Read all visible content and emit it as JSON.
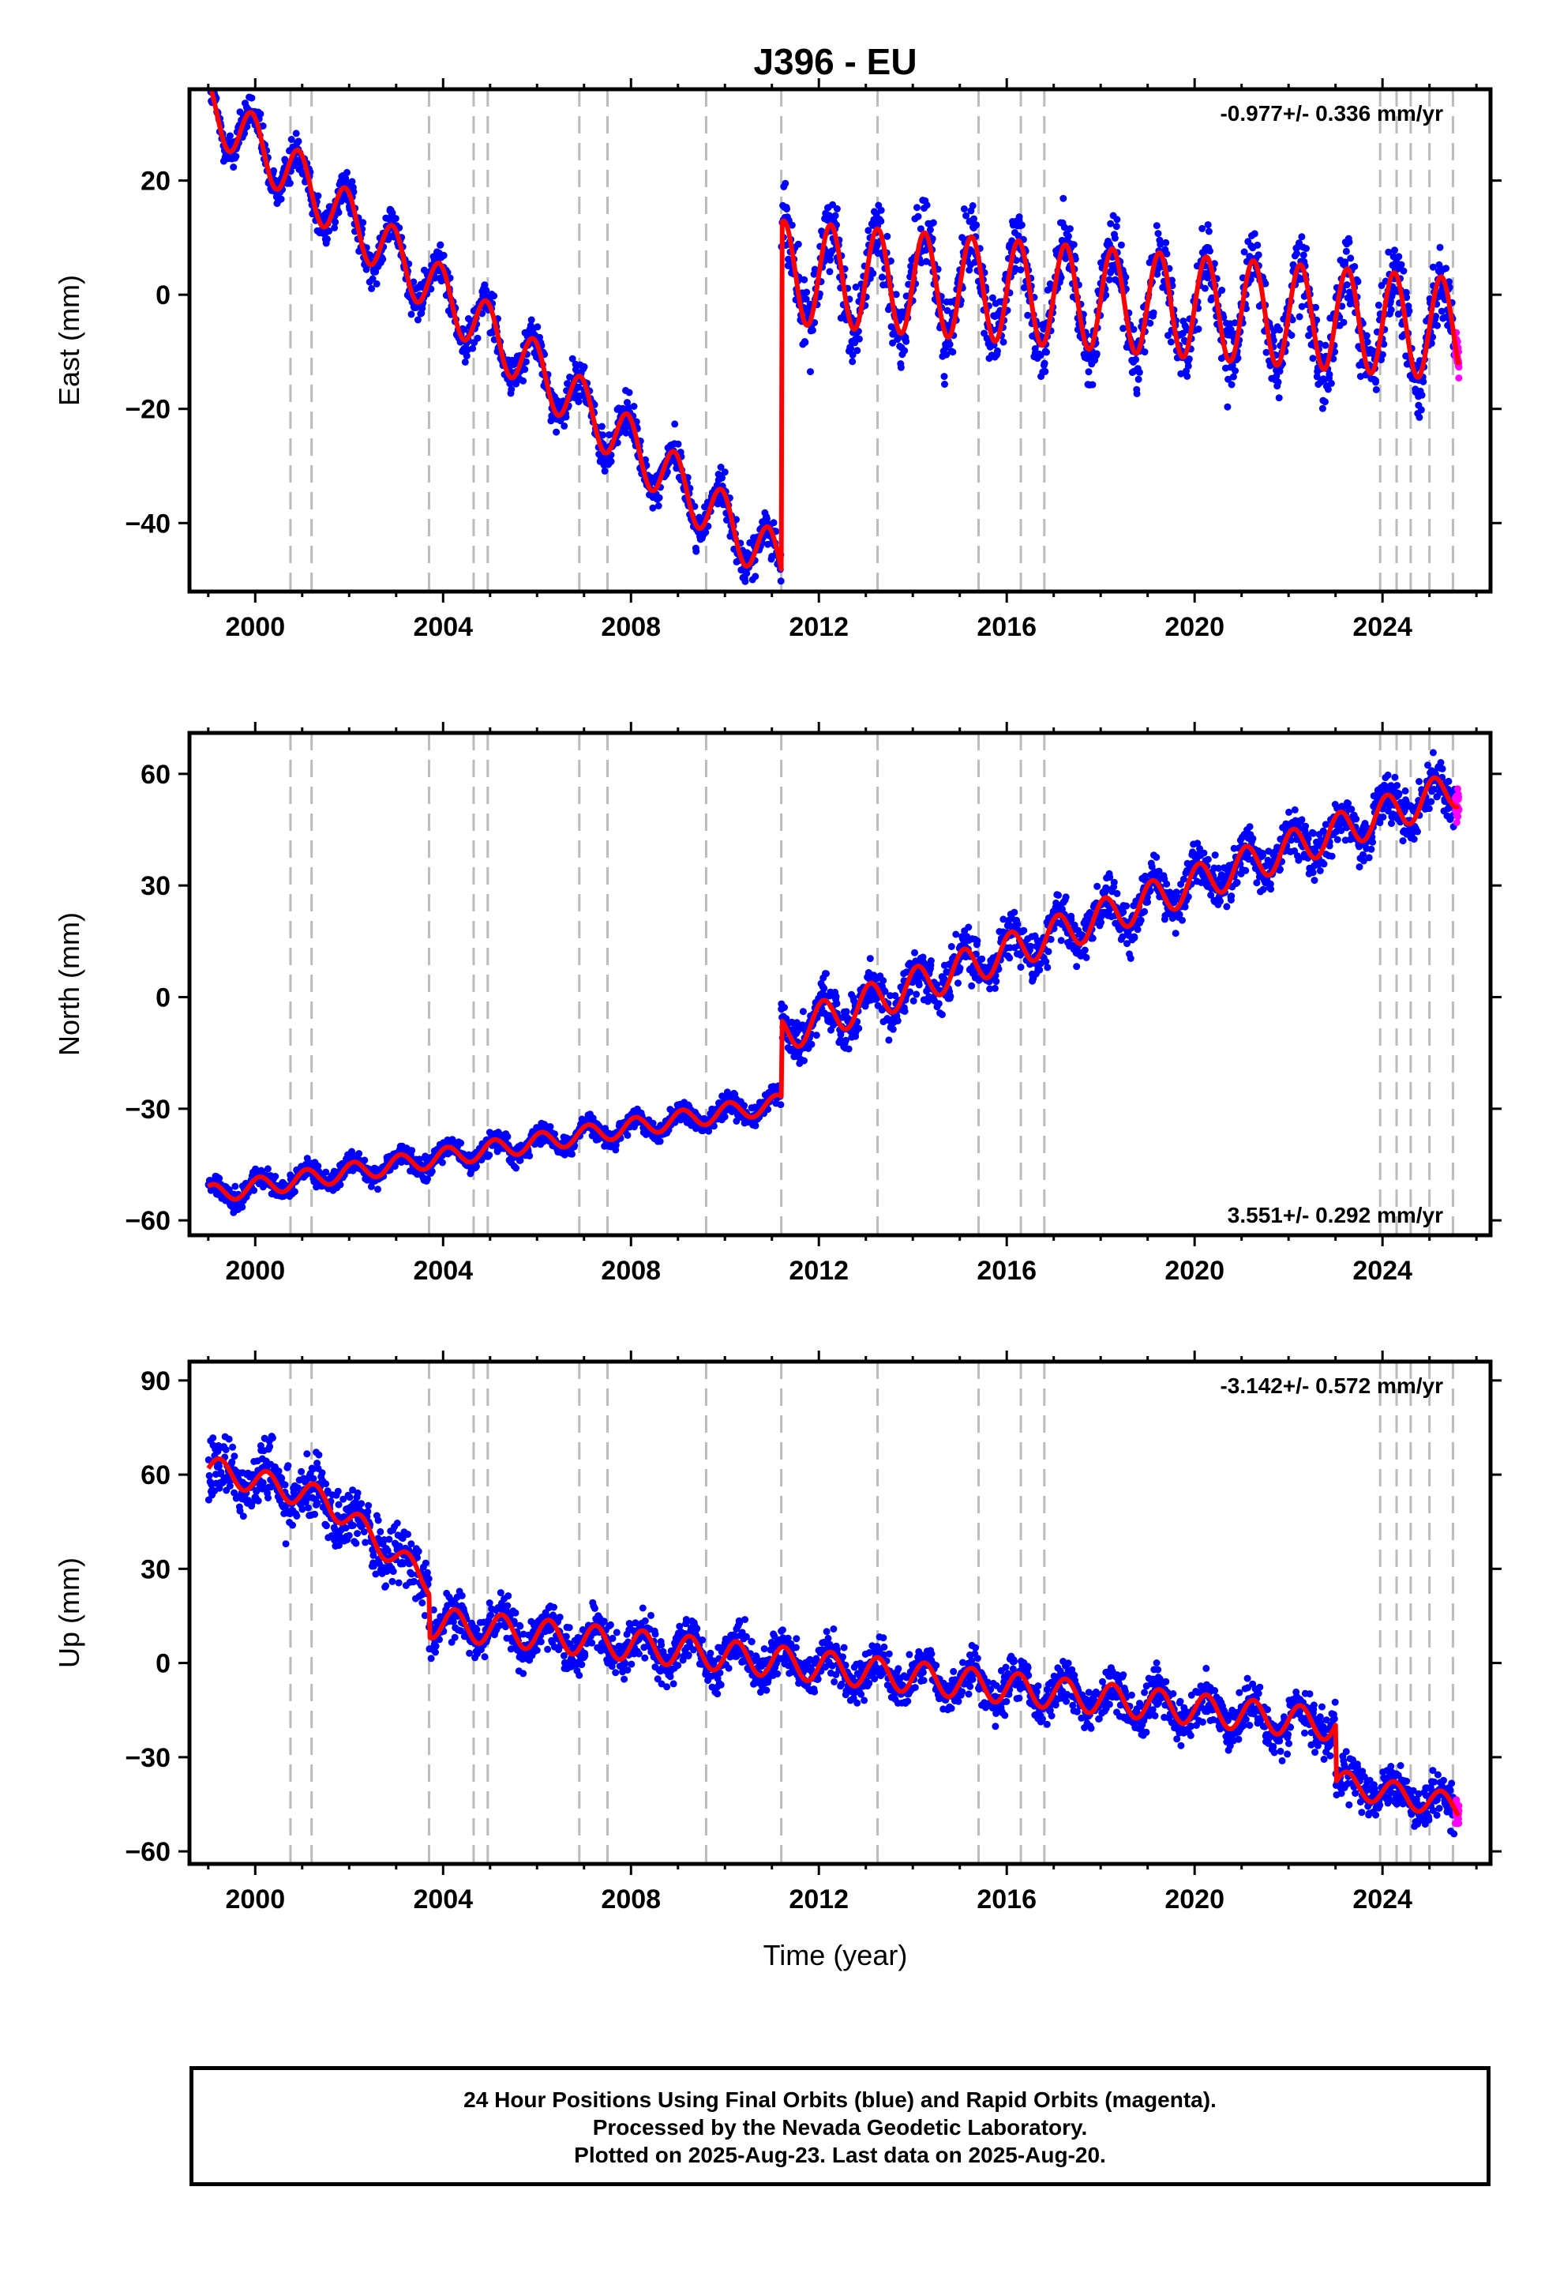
{
  "title": "J396 - EU",
  "xlabel": "Time (year)",
  "footer": {
    "line1": "24 Hour Positions Using Final Orbits (blue) and Rapid Orbits (magenta).",
    "line2": "Processed by the Nevada Geodetic Laboratory.",
    "line3": "Plotted on 2025-Aug-23. Last data on 2025-Aug-20."
  },
  "colors": {
    "final": "#0000ff",
    "rapid": "#ff00ff",
    "model": "#ff0000",
    "events": "#bbbbbb"
  },
  "chart_data": [
    {
      "type": "scatter",
      "component": "east",
      "ylabel": "East (mm)",
      "rate_text": "-0.977+/- 0.336 mm/yr",
      "rate_position": "top-right",
      "xlim": [
        1998.6,
        2026.3
      ],
      "ylim": [
        -52,
        36
      ],
      "xticks": [
        2000,
        2004,
        2008,
        2012,
        2016,
        2020,
        2024
      ],
      "yticks": [
        -40,
        -20,
        0,
        20
      ],
      "events": [
        2000.75,
        2001.2,
        2003.7,
        2004.65,
        2004.95,
        2006.9,
        2007.5,
        2009.6,
        2011.2,
        2013.25,
        2015.4,
        2016.3,
        2016.8,
        2023.95,
        2024.3,
        2024.6,
        2025.0,
        2025.5
      ],
      "segments": [
        {
          "from": 1999.0,
          "to": 2011.2,
          "offset": 33,
          "rate": -6.6,
          "amp": 5,
          "phase": 2.0,
          "noise": 2.5
        },
        {
          "from": 2011.2,
          "to": 2025.63,
          "offset": 4,
          "rate": -0.7,
          "amp": 9,
          "phase": 0.0,
          "noise": 4.5
        }
      ],
      "final_series": {
        "name": "Final Orbits",
        "x_range": [
          1999.0,
          2025.55
        ]
      },
      "rapid_series": {
        "name": "Rapid Orbits",
        "x_range": [
          2025.55,
          2025.63
        ]
      },
      "model_fit": {
        "name": "Model fit"
      },
      "approx_points": [
        [
          1999.0,
          30
        ],
        [
          2003.0,
          5
        ],
        [
          2007.0,
          -22
        ],
        [
          2011.0,
          -45
        ],
        [
          2011.3,
          0
        ],
        [
          2014.0,
          5
        ],
        [
          2018.0,
          2
        ],
        [
          2022.0,
          -2
        ],
        [
          2025.5,
          -6
        ]
      ]
    },
    {
      "type": "scatter",
      "component": "north",
      "ylabel": "North (mm)",
      "rate_text": "3.551+/- 0.292 mm/yr",
      "rate_position": "bottom-right",
      "xlim": [
        1998.6,
        2026.3
      ],
      "ylim": [
        -64,
        71
      ],
      "xticks": [
        2000,
        2004,
        2008,
        2012,
        2016,
        2020,
        2024
      ],
      "yticks": [
        -60,
        -30,
        0,
        30,
        60
      ],
      "events": [
        2000.75,
        2001.2,
        2003.7,
        2004.65,
        2004.95,
        2006.9,
        2007.5,
        2009.6,
        2011.2,
        2013.25,
        2015.4,
        2016.3,
        2016.8,
        2023.95,
        2024.3,
        2024.6,
        2025.0,
        2025.5
      ],
      "segments": [
        {
          "from": 1999.0,
          "to": 2011.2,
          "offset": -53,
          "rate": 2.0,
          "amp": 2.5,
          "phase": 1.0,
          "noise": 2.0
        },
        {
          "from": 2011.2,
          "to": 2025.63,
          "offset": -10,
          "rate": 4.6,
          "amp": 5,
          "phase": 1.0,
          "noise": 4.5
        }
      ],
      "final_series": {
        "name": "Final Orbits",
        "x_range": [
          1999.0,
          2025.55
        ]
      },
      "rapid_series": {
        "name": "Rapid Orbits",
        "x_range": [
          2025.55,
          2025.63
        ]
      },
      "model_fit": {
        "name": "Model fit"
      },
      "approx_points": [
        [
          1999.0,
          -53
        ],
        [
          2005.0,
          -40
        ],
        [
          2011.0,
          -28
        ],
        [
          2012.0,
          -2
        ],
        [
          2016.0,
          20
        ],
        [
          2020.0,
          32
        ],
        [
          2024.0,
          50
        ],
        [
          2025.5,
          58
        ]
      ]
    },
    {
      "type": "scatter",
      "component": "up",
      "ylabel": "Up (mm)",
      "rate_text": "-3.142+/- 0.572 mm/yr",
      "rate_position": "top-right",
      "xlim": [
        1998.6,
        2026.3
      ],
      "ylim": [
        -64,
        96
      ],
      "xticks": [
        2000,
        2004,
        2008,
        2012,
        2016,
        2020,
        2024
      ],
      "yticks": [
        -60,
        -30,
        0,
        30,
        60,
        90
      ],
      "events": [
        2000.75,
        2001.2,
        2003.7,
        2004.65,
        2004.95,
        2006.9,
        2007.5,
        2009.6,
        2011.2,
        2013.25,
        2015.4,
        2016.3,
        2016.8,
        2023.95,
        2024.3,
        2024.6,
        2025.0,
        2025.5
      ],
      "segments": [
        {
          "from": 1999.0,
          "to": 2001.5,
          "offset": 62,
          "rate": -4,
          "amp": 4,
          "phase": 0.0,
          "noise": 7
        },
        {
          "from": 2001.5,
          "to": 2003.7,
          "offset": 52,
          "rate": -12,
          "amp": 4,
          "phase": 0.0,
          "noise": 7
        },
        {
          "from": 2003.7,
          "to": 2023.0,
          "offset": 13,
          "rate": -1.7,
          "amp": 5,
          "phase": 0.0,
          "noise": 5
        },
        {
          "from": 2023.0,
          "to": 2025.63,
          "offset": -38,
          "rate": -3,
          "amp": 4,
          "phase": 0.0,
          "noise": 5
        }
      ],
      "final_series": {
        "name": "Final Orbits",
        "x_range": [
          1999.0,
          2025.55
        ]
      },
      "rapid_series": {
        "name": "Rapid Orbits",
        "x_range": [
          2025.55,
          2025.63
        ]
      },
      "model_fit": {
        "name": "Model fit"
      },
      "approx_points": [
        [
          1999.0,
          60
        ],
        [
          2001.0,
          55
        ],
        [
          2003.0,
          30
        ],
        [
          2004.0,
          10
        ],
        [
          2008.0,
          8
        ],
        [
          2012.0,
          0
        ],
        [
          2016.0,
          -10
        ],
        [
          2020.0,
          -18
        ],
        [
          2022.5,
          -22
        ],
        [
          2023.5,
          -40
        ],
        [
          2025.5,
          -48
        ]
      ]
    }
  ]
}
